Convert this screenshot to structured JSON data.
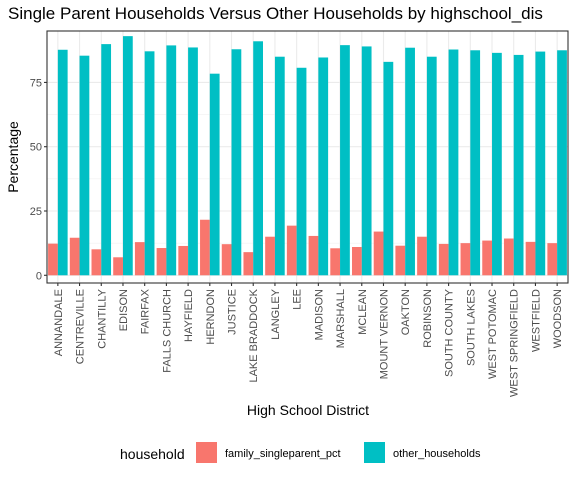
{
  "chart_data": {
    "type": "bar",
    "title": "Single Parent Households Versus Other Households by highschool_dis",
    "xlabel": "High School District",
    "ylabel": "Percentage",
    "ylim": [
      -3,
      95
    ],
    "yticks": [
      0,
      25,
      50,
      75
    ],
    "grid": true,
    "legend_position": "bottom",
    "legend_title": "household",
    "categories": [
      "ANNANDALE",
      "CENTREVILLE",
      "CHANTILLY",
      "EDISON",
      "FAIRFAX",
      "FALLS CHURCH",
      "HAYFIELD",
      "HERNDON",
      "JUSTICE",
      "LAKE BRADDOCK",
      "LANGLEY",
      "LEE",
      "MADISON",
      "MARSHALL",
      "MCLEAN",
      "MOUNT VERNON",
      "OAKTON",
      "ROBINSON",
      "SOUTH COUNTY",
      "SOUTH LAKES",
      "WEST POTOMAC",
      "WEST SPRINGFIELD",
      "WESTFIELD",
      "WOODSON"
    ],
    "series": [
      {
        "name": "family_singleparent_pct",
        "color": "#f8766d",
        "values": [
          12.3,
          14.6,
          10.1,
          7.0,
          12.9,
          10.6,
          11.4,
          21.6,
          12.1,
          9.0,
          15.0,
          19.3,
          15.3,
          10.5,
          11.0,
          17.0,
          11.5,
          15.0,
          12.2,
          12.5,
          13.5,
          14.3,
          13.0,
          12.5
        ]
      },
      {
        "name": "other_households",
        "color": "#00bfc4",
        "values": [
          87.7,
          85.4,
          89.9,
          93.0,
          87.1,
          89.4,
          88.6,
          78.4,
          87.9,
          91.0,
          85.0,
          80.7,
          84.7,
          89.5,
          89.0,
          83.0,
          88.5,
          85.0,
          87.8,
          87.5,
          86.5,
          85.7,
          87.0,
          87.5
        ]
      }
    ]
  }
}
